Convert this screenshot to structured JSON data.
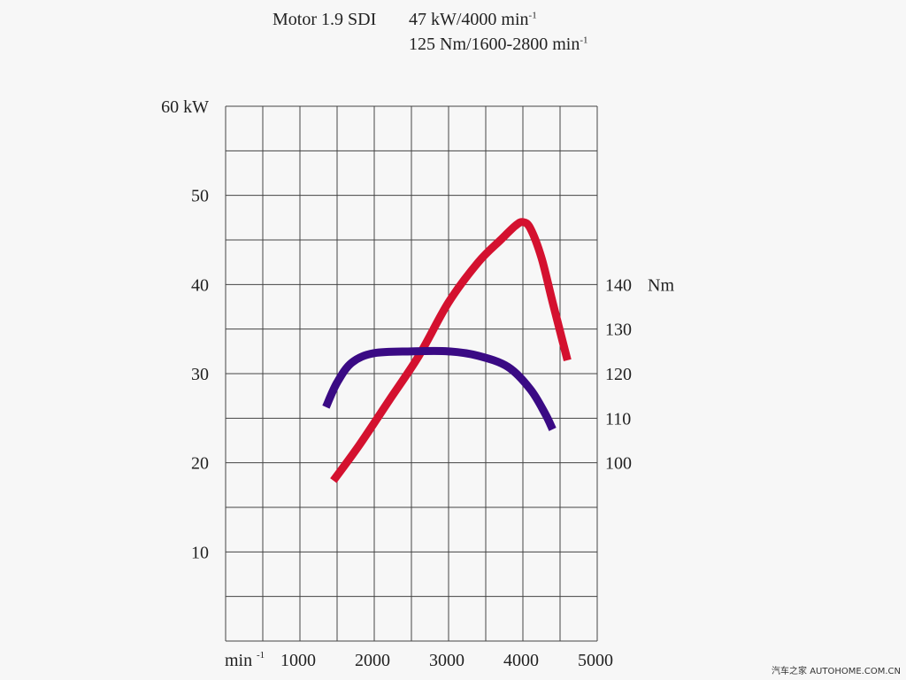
{
  "header": {
    "model": "Motor 1.9 SDI",
    "power_spec_main": "47 kW/4000 min",
    "power_spec_exp": "-1",
    "torque_spec_main": "125 Nm/1600-2800 min",
    "torque_spec_exp": "-1"
  },
  "watermark": "汽车之家 AUTOHOME.COM.CN",
  "colors": {
    "power": "#d4112f",
    "torque": "#3a0a84",
    "grid": "#444444",
    "background": "#f7f7f7"
  },
  "chart_data": {
    "type": "line",
    "x_axis": {
      "label_main": "min",
      "label_exp": "-1",
      "range": [
        0,
        5000
      ],
      "ticks": [
        1000,
        2000,
        3000,
        4000,
        5000
      ],
      "tick_labels": [
        "1000",
        "2000",
        "3000",
        "4000",
        "5000"
      ]
    },
    "y_axis_left": {
      "unit": "kW",
      "range": [
        0,
        60
      ],
      "ticks": [
        10,
        20,
        30,
        40,
        50,
        60
      ],
      "tick_labels": [
        "10",
        "20",
        "30",
        "40",
        "50",
        "60 kW"
      ]
    },
    "y_axis_right": {
      "unit": "Nm",
      "range": [
        60,
        180
      ],
      "ticks": [
        100,
        110,
        120,
        130,
        140
      ],
      "tick_labels": [
        "100",
        "110",
        "120",
        "130",
        "140"
      ]
    },
    "grid": true,
    "series": [
      {
        "key": "power",
        "axis": "left",
        "x": [
          1450,
          1800,
          2200,
          2600,
          3000,
          3400,
          3700,
          3900,
          4000,
          4100,
          4250,
          4400,
          4600
        ],
        "y": [
          18,
          22,
          27,
          32,
          38,
          42.5,
          45,
          46.6,
          47,
          46.3,
          43,
          38,
          31.5
        ]
      },
      {
        "key": "torque",
        "axis": "right",
        "x": [
          1350,
          1500,
          1700,
          2000,
          2500,
          3000,
          3400,
          3800,
          4100,
          4300,
          4400
        ],
        "y": [
          112.5,
          118,
          122.5,
          124.6,
          125,
          125,
          124,
          121.5,
          116.5,
          111,
          107.5
        ]
      }
    ]
  }
}
